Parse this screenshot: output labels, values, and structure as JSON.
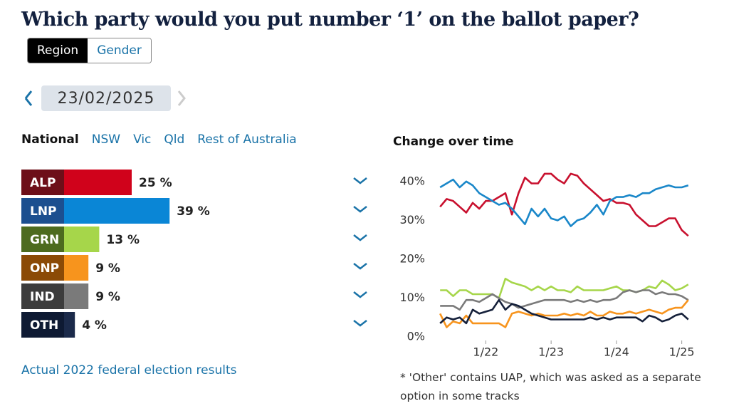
{
  "header": {
    "title": "Which party would you put number ‘1’ on the ballot paper?"
  },
  "toggle": [
    "Region",
    "Gender"
  ],
  "date": "23/02/2025",
  "tabs": [
    "National",
    "NSW",
    "Vic",
    "Qld",
    "Rest of Australia"
  ],
  "link": "Actual 2022 federal election results",
  "footnote": "* 'Other' contains UAP, which was asked as a separate option in some tracks",
  "chart_data": [
    {
      "type": "bar",
      "orientation": "horizontal",
      "categories": [
        "ALP",
        "LNP",
        "GRN",
        "ONP",
        "IND",
        "OTH"
      ],
      "values": [
        25,
        39,
        13,
        9,
        9,
        4
      ],
      "value_labels": [
        "25 %",
        "39 %",
        "13 %",
        "9 %",
        "9 %",
        "4 %"
      ],
      "colors": [
        "#d0021b",
        "#0a86d6",
        "#a6d64a",
        "#f7941d",
        "#7a7a7a",
        "#1b2a4a"
      ],
      "label_colors": [
        "#6d0f19",
        "#1c4f8f",
        "#4d6b1f",
        "#8b4a06",
        "#3c3c3c",
        "#0e1a33"
      ]
    },
    {
      "type": "line",
      "title": "Change over time",
      "x": [
        2021.3,
        2021.4,
        2021.5,
        2021.6,
        2021.7,
        2021.8,
        2021.9,
        2022.0,
        2022.1,
        2022.2,
        2022.3,
        2022.4,
        2022.5,
        2022.6,
        2022.7,
        2022.8,
        2022.9,
        2023.0,
        2023.1,
        2023.2,
        2023.3,
        2023.4,
        2023.5,
        2023.6,
        2023.7,
        2023.8,
        2023.9,
        2024.0,
        2024.1,
        2024.2,
        2024.3,
        2024.4,
        2024.5,
        2024.6,
        2024.7,
        2024.8,
        2024.9,
        2025.0,
        2025.1
      ],
      "xlim": [
        2021.2,
        2025.2
      ],
      "xticks": [
        {
          "value": 2022,
          "label": "1/22"
        },
        {
          "value": 2023,
          "label": "1/23"
        },
        {
          "value": 2024,
          "label": "1/24"
        },
        {
          "value": 2025,
          "label": "1/25"
        }
      ],
      "ylim": [
        0,
        44
      ],
      "yticks": [
        {
          "value": 0,
          "label": "0%"
        },
        {
          "value": 10,
          "label": "10%"
        },
        {
          "value": 20,
          "label": "20%"
        },
        {
          "value": 30,
          "label": "30%"
        },
        {
          "value": 40,
          "label": "40%"
        }
      ],
      "series": [
        {
          "name": "ALP",
          "color": "#c8102e",
          "values": [
            33.5,
            35.5,
            35,
            33.5,
            32,
            34.5,
            33,
            35,
            35,
            36,
            37,
            31.5,
            37,
            41,
            39.5,
            39.5,
            42,
            42,
            40.5,
            39.5,
            42,
            41.5,
            39.5,
            38,
            36.5,
            35,
            35.5,
            34.5,
            34.5,
            34,
            31.5,
            30,
            28.5,
            28.5,
            29.5,
            30.5,
            30.5,
            27.5,
            26
          ]
        },
        {
          "name": "LNP",
          "color": "#1a87c9",
          "values": [
            38.5,
            39.5,
            40.5,
            38.5,
            40,
            39,
            37,
            36,
            35,
            34,
            34.5,
            33,
            31,
            29,
            33,
            31,
            33,
            30.5,
            30,
            31,
            28.5,
            30,
            30.5,
            32,
            34,
            31.5,
            35,
            36,
            36,
            36.5,
            36,
            37,
            37,
            38,
            38.5,
            39,
            38.5,
            38.5,
            39
          ]
        },
        {
          "name": "GRN",
          "color": "#a6d64a",
          "values": [
            12,
            12,
            10.5,
            12,
            12,
            11,
            11,
            11,
            11,
            10,
            15,
            14,
            13.5,
            13,
            12,
            13,
            12,
            13,
            12,
            12,
            11.5,
            13,
            12,
            12,
            12,
            12,
            12.5,
            13,
            12,
            12,
            11.5,
            12,
            13,
            12.5,
            14.5,
            13.5,
            12,
            12.5,
            13.5
          ]
        },
        {
          "name": "IND",
          "color": "#7a7a7a",
          "values": [
            8,
            8,
            8,
            7,
            9.5,
            9.5,
            9,
            10,
            11,
            10,
            9,
            8.5,
            7.5,
            8,
            8.5,
            9,
            9.5,
            9.5,
            9.5,
            9.5,
            9,
            9.5,
            9,
            9.5,
            9,
            9.5,
            9.5,
            10,
            11.5,
            12,
            11.5,
            12,
            12,
            11,
            11.5,
            11,
            11,
            10.5,
            9.5
          ]
        },
        {
          "name": "ONP",
          "color": "#f7941d",
          "values": [
            6,
            2.5,
            4,
            3.5,
            5.5,
            3.5,
            3.5,
            3.5,
            3.5,
            3.5,
            2.5,
            6,
            6.5,
            6,
            5.5,
            6,
            5.5,
            5.5,
            5.5,
            6,
            5.5,
            6,
            5.5,
            6.5,
            5.5,
            5.5,
            6.5,
            6,
            6,
            6.5,
            6,
            6.5,
            7,
            6.5,
            6,
            7,
            7.5,
            7.5,
            9.5
          ]
        },
        {
          "name": "OTH",
          "color": "#15203a",
          "values": [
            3.5,
            5,
            4.5,
            5,
            3.5,
            7,
            6,
            6.5,
            7,
            9.5,
            7,
            8.5,
            8,
            7,
            6,
            5.5,
            5,
            4.5,
            4.5,
            4.5,
            4.5,
            4.5,
            4.5,
            5,
            4.5,
            5,
            4.5,
            5,
            5,
            5,
            5,
            4,
            5.5,
            5,
            4,
            4.5,
            5.5,
            6,
            4.5
          ]
        }
      ]
    }
  ]
}
